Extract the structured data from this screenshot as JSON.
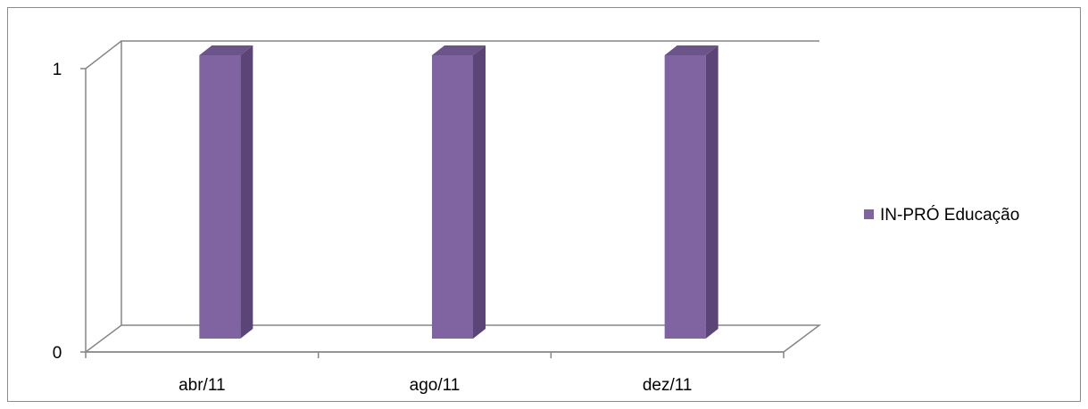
{
  "chart_data": {
    "type": "bar",
    "style": "3d-column",
    "categories": [
      "abr/11",
      "ago/11",
      "dez/11"
    ],
    "series": [
      {
        "name": "IN-PRÓ Educação",
        "color": "#8064A2",
        "values": [
          1,
          1,
          1
        ]
      }
    ],
    "ylim": [
      0,
      1
    ],
    "yticks": [
      "0",
      "1"
    ],
    "grid": true,
    "legend_position": "right"
  }
}
